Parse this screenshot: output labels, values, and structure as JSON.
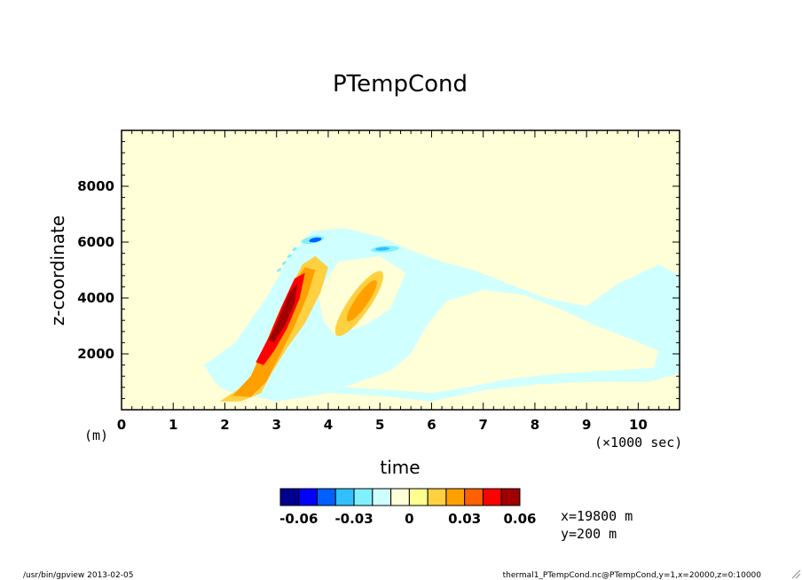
{
  "chart_data": {
    "type": "heatmap",
    "title": "PTempCond",
    "xlabel": "time",
    "ylabel": "z-coordinate",
    "x_unit": "(×1000 sec)",
    "y_unit": "(m)",
    "xlim": [
      0,
      10.8
    ],
    "ylim": [
      0,
      10000
    ],
    "x_ticks": [
      0,
      1,
      2,
      3,
      4,
      5,
      6,
      7,
      8,
      9,
      10
    ],
    "y_ticks": [
      2000,
      4000,
      6000,
      8000
    ],
    "colorbar": {
      "levels": [
        -0.07,
        -0.06,
        -0.05,
        -0.04,
        -0.03,
        -0.02,
        -0.01,
        0,
        0.01,
        0.02,
        0.03,
        0.04,
        0.05,
        0.06,
        0.07
      ],
      "tick_values": [
        "-0.06",
        "-0.03",
        "0",
        "0.03",
        "0.06"
      ],
      "colors": [
        "#000090",
        "#0000ff",
        "#0060ff",
        "#30c0ff",
        "#80f0ff",
        "#d0ffff",
        "#ffffd8",
        "#ffff90",
        "#ffd040",
        "#ffa000",
        "#ff6000",
        "#ff0000",
        "#a00000"
      ]
    },
    "contour_regions": [
      {
        "name": "weak-positive-band",
        "level": 0.01,
        "center": [
          2.8,
          2600
        ],
        "note": "light yellow"
      },
      {
        "name": "main-plume",
        "level": 0.02,
        "center": [
          3.0,
          3300
        ]
      },
      {
        "name": "main-plume-core",
        "level": 0.04,
        "center": [
          3.2,
          3600
        ]
      },
      {
        "name": "main-plume-max",
        "level": 0.05,
        "center": [
          3.25,
          3700
        ]
      },
      {
        "name": "secondary-plume",
        "level": 0.02,
        "center": [
          4.6,
          4000
        ]
      },
      {
        "name": "negative-anomaly-top-1",
        "level": -0.04,
        "center": [
          3.7,
          6050
        ]
      },
      {
        "name": "negative-anomaly-top-2",
        "level": -0.03,
        "center": [
          5.1,
          5750
        ]
      },
      {
        "name": "weak-negative-area",
        "level": -0.01,
        "center": [
          6.5,
          2500
        ]
      }
    ]
  },
  "annotations": {
    "x_info": "x=19800 m",
    "y_info": "y=200 m"
  },
  "footer": {
    "left": "/usr/bin/gpview  2013-02-05",
    "right": "thermal1_PTempCond.nc@PTempCond,y=1,x=20000,z=0:10000"
  },
  "colors": {
    "background": "#ffffd8",
    "weak_neg": "#d0ffff"
  }
}
